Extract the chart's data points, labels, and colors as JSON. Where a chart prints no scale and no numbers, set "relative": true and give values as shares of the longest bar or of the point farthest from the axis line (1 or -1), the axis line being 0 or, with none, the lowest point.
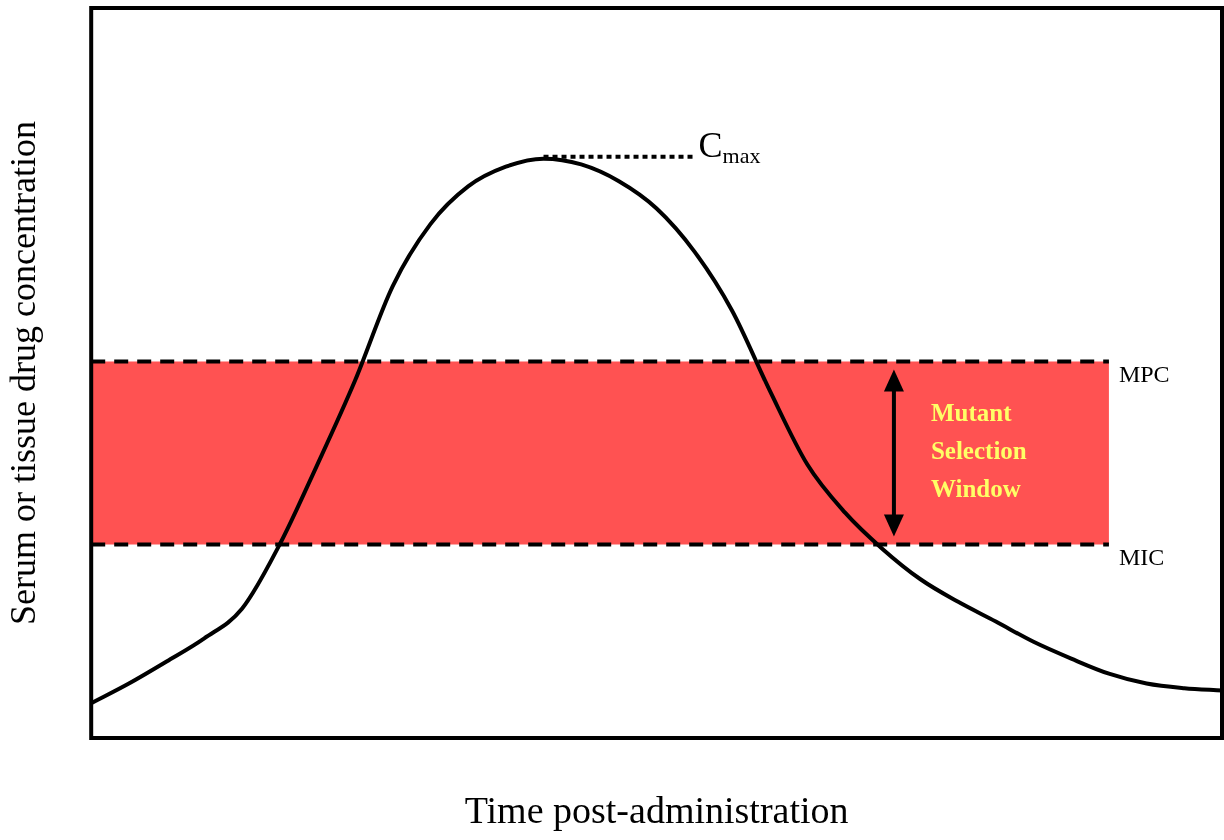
{
  "chart_data": {
    "type": "line",
    "relative": true,
    "xlabel": "Time post-administration",
    "ylabel": "Serum or tissue drug concentration",
    "categories": [
      null,
      null,
      null,
      null,
      null,
      null,
      null,
      null,
      null,
      null,
      null,
      null,
      null,
      null,
      null,
      null,
      null,
      null,
      null,
      null,
      null,
      null,
      null,
      null,
      null,
      null,
      null,
      null,
      null,
      null,
      null
    ],
    "series": [
      {
        "color": "#000000",
        "values": [
          0.06,
          0.094,
          0.132,
          0.172,
          0.223,
          0.334,
          0.472,
          0.617,
          0.78,
          0.887,
          0.952,
          0.986,
          1.0,
          0.99,
          0.961,
          0.914,
          0.84,
          0.738,
          0.6,
          0.472,
          0.389,
          0.326,
          0.274,
          0.235,
          0.201,
          0.166,
          0.137,
          0.111,
          0.094,
          0.086,
          0.082
        ]
      }
    ],
    "marker": "none",
    "line_style": "solid",
    "grid": false,
    "legend": false,
    "bands": [
      {
        "axis": "y",
        "from": 0.334,
        "to": 0.65,
        "label": "Mutant Selection Window",
        "color": "#ff5252"
      }
    ],
    "ref_lines": [
      {
        "axis": "y",
        "value": 0.65,
        "label": "MPC",
        "line_style": "dashed",
        "color": "#000000"
      },
      {
        "axis": "y",
        "value": 0.334,
        "label": "MIC",
        "line_style": "dashed",
        "color": "#000000"
      }
    ],
    "annotations": [
      "C$_{max}$"
    ]
  }
}
